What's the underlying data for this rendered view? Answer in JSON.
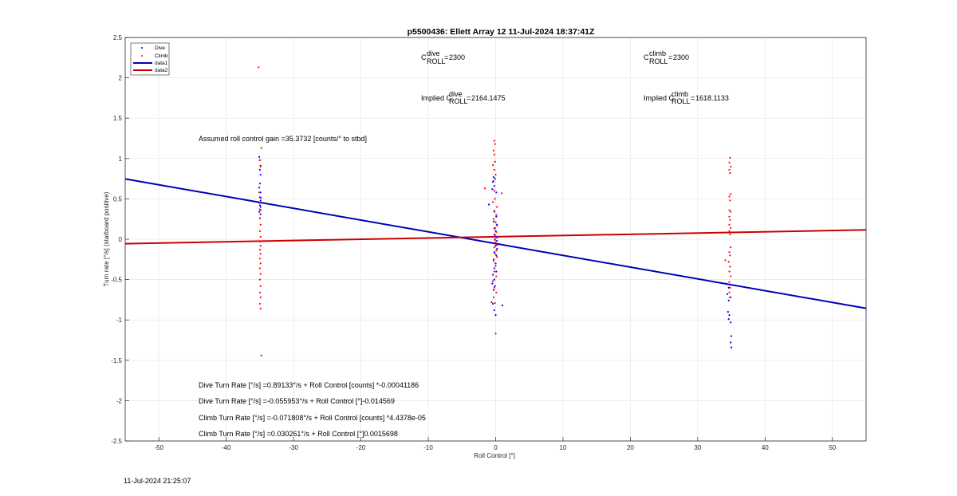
{
  "timestamp": "11-Jul-2024 21:25:07",
  "colors": {
    "dive": "#0000ff",
    "climb": "#ff0000",
    "data1": "#0000b8",
    "data2": "#cc0000",
    "grid": "#e6e6e6"
  },
  "chart_data": {
    "type": "scatter",
    "title": "p5500436: Ellett Array 12 11-Jul-2024 18:37:41Z",
    "xlabel": "Roll Control [°]",
    "ylabel": "Turn rate [°/s] (starboard positive)",
    "xlim": [
      -55,
      55
    ],
    "ylim": [
      -2.5,
      2.5
    ],
    "xticks": [
      -50,
      -40,
      -30,
      -20,
      -10,
      0,
      10,
      20,
      30,
      40,
      50
    ],
    "yticks": [
      -2.5,
      -2,
      -1.5,
      -1,
      -0.5,
      0,
      0.5,
      1,
      1.5,
      2,
      2.5
    ],
    "grid": true,
    "legend_position": "top-left",
    "legend": [
      "Dive",
      "Climb",
      "data1",
      "data2"
    ],
    "series": [
      {
        "name": "Dive",
        "style": "points",
        "color": "#0000ff",
        "points": [
          [
            -35.1,
            1.02
          ],
          [
            -35.0,
            0.98
          ],
          [
            -34.9,
            0.91
          ],
          [
            -35.0,
            0.86
          ],
          [
            -34.9,
            0.8
          ],
          [
            -35.0,
            0.69
          ],
          [
            -35.1,
            0.64
          ],
          [
            -34.9,
            0.58
          ],
          [
            -35.0,
            0.52
          ],
          [
            -34.9,
            0.48
          ],
          [
            -35.1,
            0.45
          ],
          [
            -35.0,
            0.42
          ],
          [
            -34.9,
            0.4
          ],
          [
            -35.0,
            0.37
          ],
          [
            -35.1,
            0.34
          ],
          [
            -34.9,
            0.31
          ],
          [
            -35.0,
            0.26
          ],
          [
            -0.3,
            0.77
          ],
          [
            -0.1,
            0.75
          ],
          [
            -0.4,
            0.71
          ],
          [
            -0.2,
            0.66
          ],
          [
            -0.5,
            0.62
          ],
          [
            0.1,
            0.58
          ],
          [
            -1.0,
            0.43
          ],
          [
            -0.2,
            0.35
          ],
          [
            0.1,
            0.28
          ],
          [
            -0.3,
            0.22
          ],
          [
            0.2,
            0.18
          ],
          [
            -0.1,
            0.14
          ],
          [
            0.0,
            0.1
          ],
          [
            -0.2,
            0.06
          ],
          [
            0.1,
            0.03
          ],
          [
            -0.1,
            0.0
          ],
          [
            0.2,
            -0.02
          ],
          [
            -0.1,
            -0.05
          ],
          [
            0.0,
            -0.08
          ],
          [
            0.2,
            -0.12
          ],
          [
            -0.2,
            -0.16
          ],
          [
            0.1,
            -0.2
          ],
          [
            -0.3,
            -0.25
          ],
          [
            0.0,
            -0.3
          ],
          [
            -0.2,
            -0.36
          ],
          [
            0.1,
            -0.4
          ],
          [
            -0.4,
            -0.44
          ],
          [
            -0.2,
            -0.5
          ],
          [
            -0.5,
            -0.55
          ],
          [
            -0.1,
            -0.58
          ],
          [
            -0.3,
            -0.63
          ],
          [
            -0.6,
            -0.78
          ],
          [
            -0.4,
            -0.8
          ],
          [
            1.0,
            -0.82
          ],
          [
            -0.2,
            -0.88
          ],
          [
            0.0,
            -0.94
          ],
          [
            34.2,
            -0.55
          ],
          [
            34.6,
            -0.6
          ],
          [
            34.4,
            -0.68
          ],
          [
            34.8,
            -0.72
          ],
          [
            34.6,
            -0.76
          ],
          [
            34.5,
            -0.9
          ],
          [
            34.7,
            -0.94
          ],
          [
            34.6,
            -0.99
          ],
          [
            34.9,
            -1.03
          ],
          [
            35.0,
            -1.2
          ],
          [
            34.9,
            -1.28
          ],
          [
            35.0,
            -1.34
          ]
        ]
      },
      {
        "name": "Climb",
        "style": "points",
        "color": "#ff0000",
        "points": [
          [
            -35.2,
            2.13
          ],
          [
            -34.8,
            1.13
          ],
          [
            -35.0,
            0.98
          ],
          [
            -34.9,
            0.9
          ],
          [
            -35.1,
            0.58
          ],
          [
            -34.8,
            0.51
          ],
          [
            -35.0,
            0.45
          ],
          [
            -34.9,
            0.36
          ],
          [
            -35.0,
            0.26
          ],
          [
            -34.9,
            0.18
          ],
          [
            -35.0,
            0.1
          ],
          [
            -34.9,
            0.03
          ],
          [
            -35.0,
            -0.03
          ],
          [
            -34.9,
            -0.08
          ],
          [
            -35.0,
            -0.13
          ],
          [
            -34.9,
            -0.18
          ],
          [
            -35.0,
            -0.24
          ],
          [
            -34.9,
            -0.3
          ],
          [
            -35.0,
            -0.36
          ],
          [
            -34.9,
            -0.43
          ],
          [
            -35.0,
            -0.5
          ],
          [
            -34.9,
            -0.58
          ],
          [
            -35.0,
            -0.66
          ],
          [
            -34.9,
            -0.72
          ],
          [
            -35.0,
            -0.8
          ],
          [
            -34.9,
            -0.86
          ],
          [
            -34.8,
            -1.44
          ],
          [
            -0.2,
            1.22
          ],
          [
            -0.1,
            1.18
          ],
          [
            -0.3,
            1.1
          ],
          [
            -0.2,
            1.05
          ],
          [
            -0.1,
            0.96
          ],
          [
            -0.4,
            0.92
          ],
          [
            -0.2,
            0.86
          ],
          [
            0.0,
            0.8
          ],
          [
            -0.3,
            0.72
          ],
          [
            -1.6,
            0.63
          ],
          [
            -0.2,
            0.6
          ],
          [
            0.9,
            0.57
          ],
          [
            -0.1,
            0.5
          ],
          [
            -0.4,
            0.46
          ],
          [
            0.2,
            0.4
          ],
          [
            -0.2,
            0.34
          ],
          [
            0.1,
            0.3
          ],
          [
            -0.3,
            0.25
          ],
          [
            0.0,
            0.21
          ],
          [
            0.2,
            0.17
          ],
          [
            -0.2,
            0.13
          ],
          [
            0.1,
            0.09
          ],
          [
            -0.1,
            0.05
          ],
          [
            0.2,
            0.02
          ],
          [
            -0.1,
            -0.01
          ],
          [
            0.0,
            -0.04
          ],
          [
            0.2,
            -0.07
          ],
          [
            -0.2,
            -0.1
          ],
          [
            0.1,
            -0.14
          ],
          [
            -0.1,
            -0.18
          ],
          [
            0.2,
            -0.22
          ],
          [
            -0.3,
            -0.27
          ],
          [
            0.0,
            -0.33
          ],
          [
            -0.2,
            -0.4
          ],
          [
            0.1,
            -0.46
          ],
          [
            -0.4,
            -0.52
          ],
          [
            -0.2,
            -0.6
          ],
          [
            0.1,
            -0.66
          ],
          [
            -0.3,
            -0.72
          ],
          [
            -0.1,
            -0.79
          ],
          [
            0.0,
            -1.17
          ],
          [
            34.8,
            1.01
          ],
          [
            34.7,
            0.95
          ],
          [
            34.9,
            0.9
          ],
          [
            34.7,
            0.86
          ],
          [
            34.8,
            0.82
          ],
          [
            34.9,
            0.56
          ],
          [
            34.7,
            0.53
          ],
          [
            34.8,
            0.48
          ],
          [
            34.7,
            0.36
          ],
          [
            34.9,
            0.34
          ],
          [
            34.7,
            0.28
          ],
          [
            34.8,
            0.24
          ],
          [
            34.7,
            0.18
          ],
          [
            34.9,
            0.14
          ],
          [
            34.7,
            0.1
          ],
          [
            34.8,
            0.06
          ],
          [
            34.9,
            -0.1
          ],
          [
            34.7,
            -0.16
          ],
          [
            34.8,
            -0.2
          ],
          [
            34.1,
            -0.26
          ],
          [
            34.6,
            -0.28
          ],
          [
            34.8,
            -0.34
          ],
          [
            34.7,
            -0.4
          ],
          [
            34.9,
            -0.46
          ],
          [
            34.7,
            -0.53
          ],
          [
            34.8,
            -0.6
          ],
          [
            34.7,
            -0.66
          ],
          [
            34.9,
            -0.72
          ]
        ]
      },
      {
        "name": "data1",
        "style": "line",
        "color": "#0000b8",
        "points": [
          [
            -55,
            0.7477
          ],
          [
            55,
            -0.8562
          ]
        ]
      },
      {
        "name": "data2",
        "style": "line",
        "color": "#cc0000",
        "points": [
          [
            -55,
            -0.055
          ],
          [
            55,
            0.1156
          ]
        ]
      }
    ],
    "annotations": {
      "cdive": "2300",
      "cclimb": "2300",
      "implied_dive": "2164.1475",
      "implied_climb": "1618.1133",
      "gain": "Assumed roll control gain =35.3732 [counts/° to stbd]",
      "fit_lines": [
        "Dive Turn Rate [°/s] =0.89133°/s + Roll Control [counts] *-0.00041186",
        "Dive Turn Rate [°/s] =-0.055953°/s + Roll Control [°]-0.014569",
        "Climb Turn Rate [°/s] =-0.071808°/s + Roll Control [counts] *4.4378e-05",
        "Climb Turn Rate [°/s] =0.030261°/s + Roll Control [°]0.0015698"
      ]
    }
  }
}
